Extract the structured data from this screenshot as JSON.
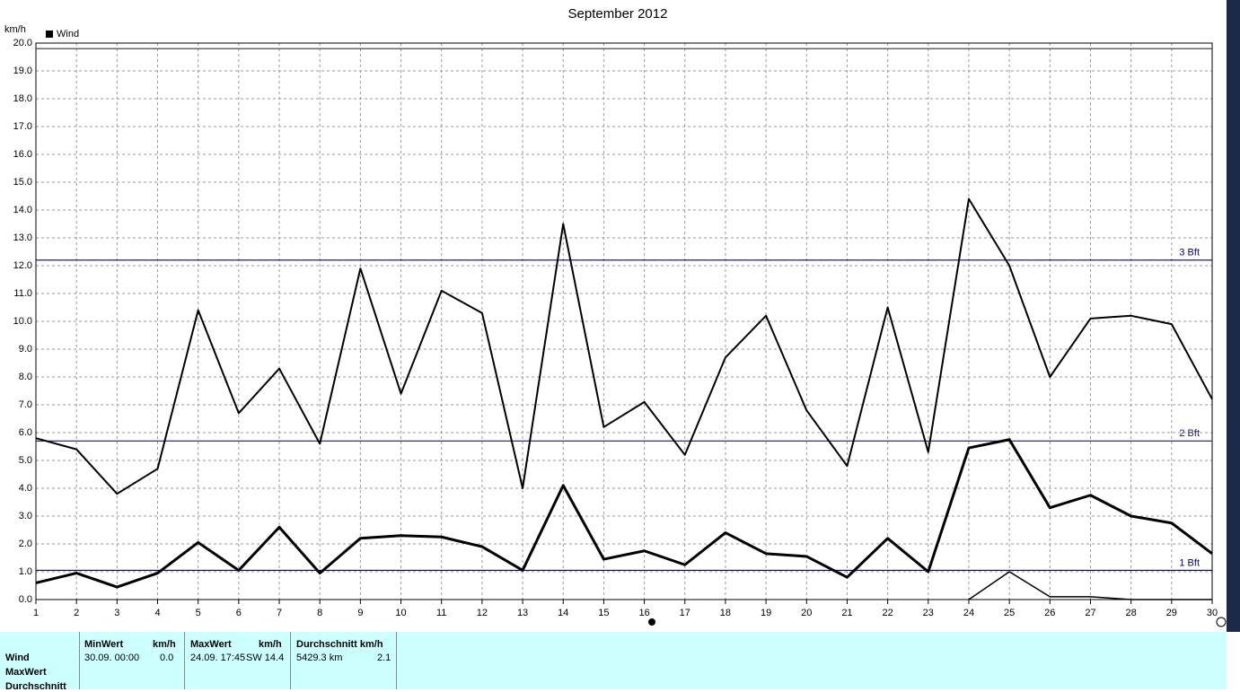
{
  "chart_data": {
    "type": "line",
    "title": "September 2012",
    "y_unit": "km/h",
    "legend": [
      "Wind"
    ],
    "x": [
      1,
      2,
      3,
      4,
      5,
      6,
      7,
      8,
      9,
      10,
      11,
      12,
      13,
      14,
      15,
      16,
      17,
      18,
      19,
      20,
      21,
      22,
      23,
      24,
      25,
      26,
      27,
      28,
      29,
      30
    ],
    "xlim": [
      1,
      30
    ],
    "xticks": [
      1,
      2,
      3,
      4,
      5,
      6,
      7,
      8,
      9,
      10,
      11,
      12,
      13,
      14,
      15,
      16,
      17,
      18,
      19,
      20,
      21,
      22,
      23,
      24,
      25,
      26,
      27,
      28,
      29,
      30
    ],
    "ylim": [
      0,
      20
    ],
    "yticks": [
      {
        "value": 0,
        "label": "0.0"
      },
      {
        "value": 1,
        "label": "1.0"
      },
      {
        "value": 2,
        "label": "2.0"
      },
      {
        "value": 3,
        "label": "3.0"
      },
      {
        "value": 4,
        "label": "4.0"
      },
      {
        "value": 5,
        "label": "5.0"
      },
      {
        "value": 6,
        "label": "6.0"
      },
      {
        "value": 7,
        "label": "7.0"
      },
      {
        "value": 8,
        "label": "8.0"
      },
      {
        "value": 9,
        "label": "9.0"
      },
      {
        "value": 10,
        "label": "10.0"
      },
      {
        "value": 11,
        "label": "11.0"
      },
      {
        "value": 12,
        "label": "12.0"
      },
      {
        "value": 13,
        "label": "13.0"
      },
      {
        "value": 14,
        "label": "14.0"
      },
      {
        "value": 15,
        "label": "15.0"
      },
      {
        "value": 16,
        "label": "16.0"
      },
      {
        "value": 17,
        "label": "17.0"
      },
      {
        "value": 18,
        "label": "18.0"
      },
      {
        "value": 19,
        "label": "19.0"
      },
      {
        "value": 20,
        "label": "20.0"
      }
    ],
    "grid": true,
    "reference_lines": [
      {
        "value": 19.8,
        "color": "#333333"
      },
      {
        "value": 12.2,
        "label": "3 Bft",
        "color": "#00008b"
      },
      {
        "value": 5.7,
        "label": "2 Bft",
        "color": "#1a1a6e"
      },
      {
        "value": 1.05,
        "label": "1 Bft",
        "color": "#00008b"
      }
    ],
    "series": [
      {
        "color": "#000000",
        "width": 2,
        "values": [
          5.8,
          5.4,
          3.8,
          4.7,
          10.4,
          6.7,
          8.3,
          5.6,
          11.9,
          7.4,
          11.1,
          10.3,
          4.0,
          13.5,
          6.2,
          7.1,
          5.2,
          8.7,
          10.2,
          6.8,
          4.8,
          10.5,
          5.3,
          14.4,
          12.0,
          8.0,
          10.1,
          10.2,
          9.9,
          7.2
        ]
      },
      {
        "color": "#000000",
        "width": 3,
        "values": [
          0.6,
          0.95,
          0.45,
          0.95,
          2.05,
          1.05,
          2.6,
          0.95,
          2.2,
          2.3,
          2.25,
          1.9,
          1.05,
          4.1,
          1.45,
          1.75,
          1.25,
          2.4,
          1.65,
          1.55,
          0.8,
          2.2,
          1.0,
          5.45,
          5.75,
          3.3,
          3.75,
          3.0,
          2.75,
          1.65
        ]
      },
      {
        "color": "#000000",
        "width": 1.5,
        "values": [
          null,
          null,
          null,
          null,
          null,
          null,
          null,
          null,
          null,
          null,
          null,
          null,
          null,
          null,
          null,
          null,
          null,
          null,
          null,
          null,
          null,
          null,
          null,
          0,
          1.0,
          0.1,
          0.1,
          0,
          0,
          0
        ]
      }
    ]
  },
  "table": {
    "headers": [
      [
        "MinWert",
        "km/h"
      ],
      [
        "MaxWert",
        "km/h"
      ],
      [
        "Durchschnitt km/h"
      ]
    ],
    "row_labels": [
      "Wind",
      "MaxWert",
      "Durchschnitt"
    ],
    "cells": [
      [
        "30.09.  00:00",
        "0.0"
      ],
      [
        "24.09.  17:45",
        "SW 14.4"
      ],
      [
        "5429.3 km",
        "2.1"
      ]
    ]
  }
}
